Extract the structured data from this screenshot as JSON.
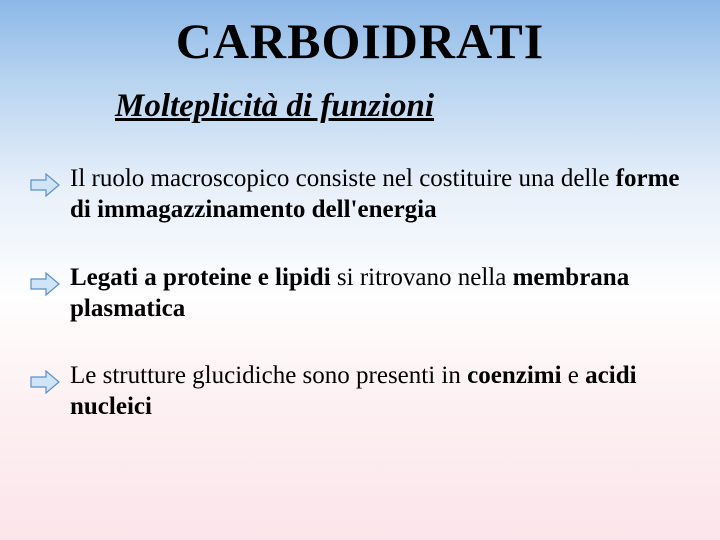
{
  "title": "CARBOIDRATI",
  "subtitle": "Molteplicità di funzioni",
  "bullets": [
    {
      "parts": [
        {
          "t": "Il ruolo macroscopico consiste nel costituire una delle ",
          "b": false
        },
        {
          "t": "forme di immagazzinamento dell'energia",
          "b": true
        }
      ]
    },
    {
      "parts": [
        {
          "t": "Legati a proteine e lipidi",
          "b": true
        },
        {
          "t": " si ritrovano nella ",
          "b": false
        },
        {
          "t": "membrana plasmatica",
          "b": true
        }
      ]
    },
    {
      "parts": [
        {
          "t": "Le strutture glucidiche sono presenti in ",
          "b": false
        },
        {
          "t": "coenzimi",
          "b": true
        },
        {
          "t": " e ",
          "b": false
        },
        {
          "t": "acidi nucleici",
          "b": true
        }
      ]
    }
  ],
  "arrow": {
    "fill": "#d0e4f7",
    "stroke": "#5a8fc9",
    "stroke_width": 1.2,
    "width": 30,
    "height": 24
  },
  "typography": {
    "title_fontsize": 50,
    "subtitle_fontsize": 33,
    "body_fontsize": 25,
    "font_family": "Comic Sans MS"
  },
  "background": {
    "gradient_stops": [
      "#8db8e8",
      "#b8d4f0",
      "#e8f0fa",
      "#fefefe",
      "#fdf0f2",
      "#fce5ea"
    ]
  }
}
